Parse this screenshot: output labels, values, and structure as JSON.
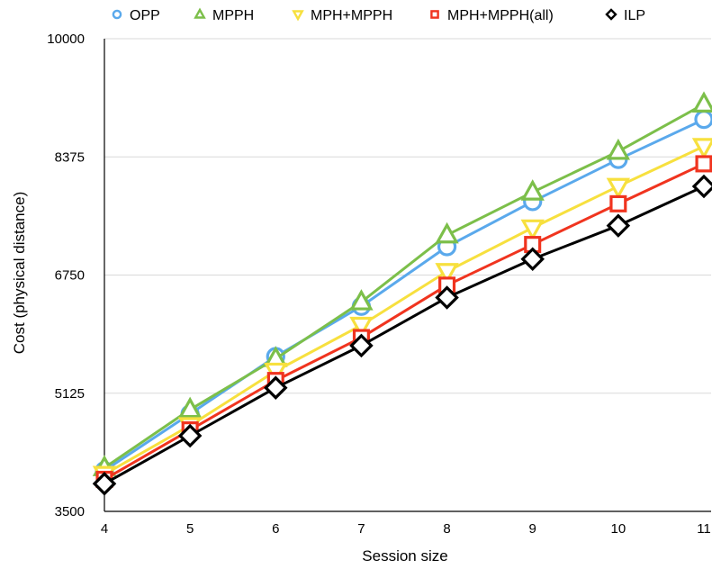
{
  "chart_data": {
    "type": "line",
    "xlabel": "Session size",
    "ylabel": "Cost (physical distance)",
    "x": [
      4,
      5,
      6,
      7,
      8,
      9,
      10,
      11
    ],
    "xticks": [
      "4",
      "5",
      "6",
      "7",
      "8",
      "9",
      "10",
      "11"
    ],
    "yticks": [
      "3500",
      "5125",
      "6750",
      "8375",
      "10000"
    ],
    "ylim": [
      3500,
      10000
    ],
    "xlim": [
      4,
      11
    ],
    "grid": "horizontal",
    "legend_position": "top",
    "series": [
      {
        "name": "OPP",
        "color": "#5aa9ec",
        "marker": "circle",
        "values": [
          4060,
          4840,
          5630,
          6320,
          7140,
          7760,
          8340,
          8890
        ]
      },
      {
        "name": "MPPH",
        "color": "#7cbf4a",
        "marker": "triangle-up",
        "values": [
          4100,
          4900,
          5600,
          6380,
          7300,
          7890,
          8450,
          9100
        ]
      },
      {
        "name": "MPH+MPPH",
        "color": "#f7e03e",
        "marker": "triangle-down",
        "values": [
          4010,
          4680,
          5430,
          6060,
          6800,
          7400,
          7970,
          8520
        ]
      },
      {
        "name": "MPH+MPPH(all)",
        "color": "#f0341f",
        "marker": "square",
        "values": [
          3940,
          4620,
          5300,
          5890,
          6610,
          7170,
          7730,
          8280
        ]
      },
      {
        "name": "ILP",
        "color": "#000000",
        "marker": "diamond",
        "values": [
          3880,
          4540,
          5200,
          5780,
          6440,
          6970,
          7430,
          7970
        ]
      }
    ]
  }
}
